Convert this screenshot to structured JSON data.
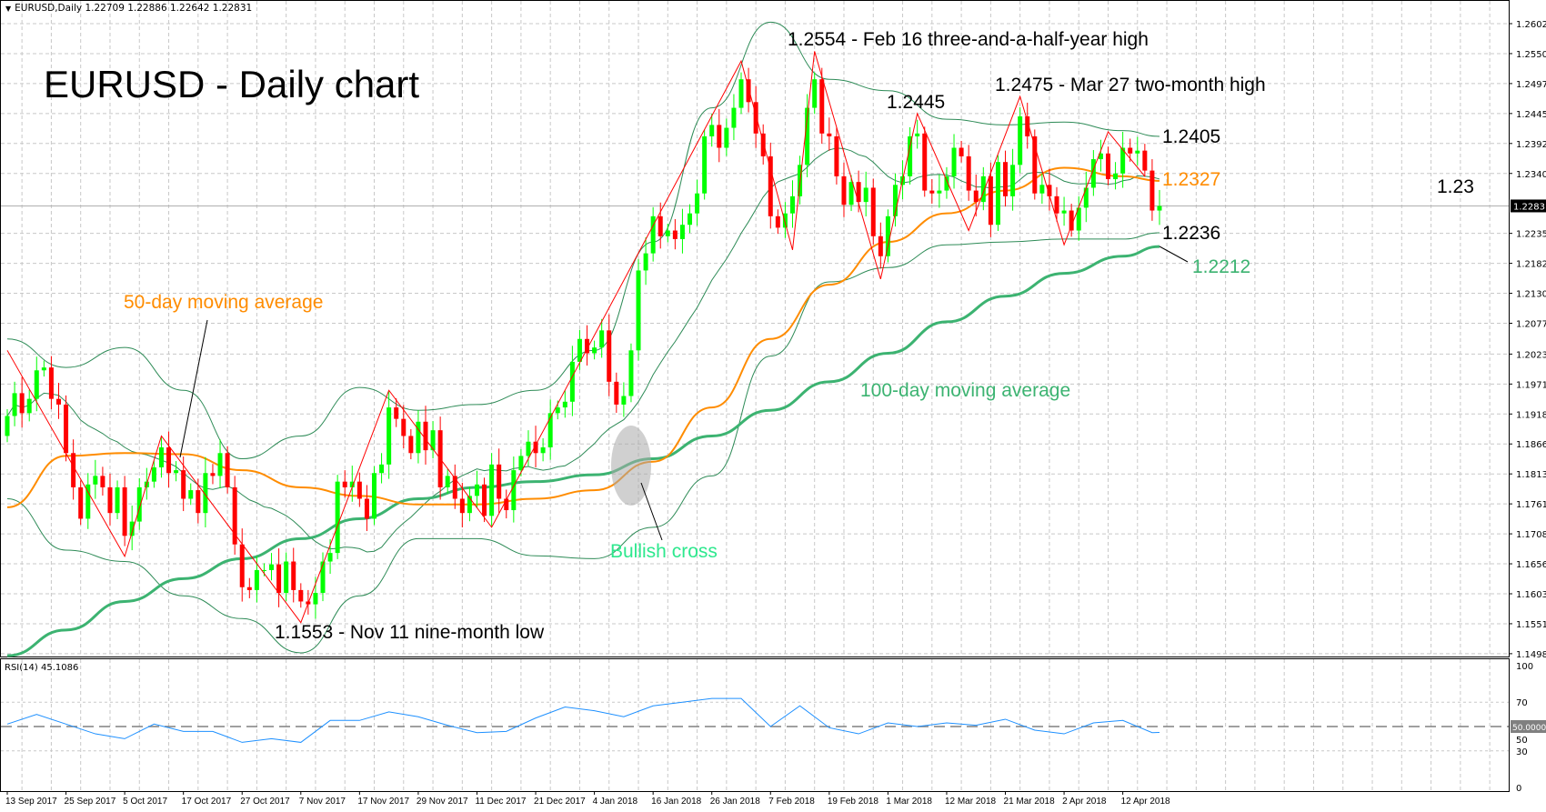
{
  "header": {
    "symbol": "EURUSD,Daily",
    "open": "1.22709",
    "high": "1.22886",
    "low": "1.22642",
    "close": "1.22831",
    "menu_icon": "triangle-down-icon"
  },
  "annotations": {
    "title": "EURUSD - Daily chart",
    "feb_high": "1.2554 - Feb 16 three-and-a-half-year high",
    "mar_high": "1.2475 - Mar 27 two-month high",
    "level_12445": "1.2445",
    "level_12405": "1.2405",
    "level_12327": "1.2327",
    "level_123": "1.23",
    "level_12236": "1.2236",
    "level_12212": "1.2212",
    "ma50_label": "50-day moving average",
    "ma100_label": "100-day moving average",
    "bullish_cross": "Bullish cross",
    "nov_low": "1.1553 - Nov 11 nine-month low"
  },
  "colors": {
    "bull": "#00ff00",
    "bear": "#ff0000",
    "ma50": "#ff8c00",
    "ma100": "#3cb371",
    "bands": "#2e8b57",
    "zigzag": "#ff0000",
    "rsi": "#1e90ff",
    "cross_text": "#2ee88e"
  },
  "chart_data": [
    {
      "type": "candlestick",
      "title": "",
      "price_axis": {
        "ticks": [
          "1.26025",
          "1.25500",
          "1.24975",
          "1.24450",
          "1.23925",
          "1.23400",
          "1.22350",
          "1.21825",
          "1.21300",
          "1.20775",
          "1.20235",
          "1.19710",
          "1.19185",
          "1.18660",
          "1.18135",
          "1.17610",
          "1.17085",
          "1.16560",
          "1.16035",
          "1.15510",
          "1.14985"
        ],
        "ylim": [
          1.14985,
          1.26025
        ],
        "current_price": "1.22831"
      },
      "date_axis": {
        "ticks": [
          "13 Sep 2017",
          "25 Sep 2017",
          "5 Oct 2017",
          "17 Oct 2017",
          "27 Oct 2017",
          "7 Nov 2017",
          "17 Nov 2017",
          "29 Nov 2017",
          "11 Dec 2017",
          "21 Dec 2017",
          "4 Jan 2018",
          "16 Jan 2018",
          "26 Jan 2018",
          "7 Feb 2018",
          "19 Feb 2018",
          "1 Mar 2018",
          "12 Mar 2018",
          "21 Mar 2018",
          "2 Apr 2018",
          "12 Apr 2018"
        ]
      },
      "grid": true,
      "closes": [
        1.1915,
        1.1955,
        1.192,
        1.1945,
        1.1995,
        1.2,
        1.1945,
        1.1935,
        1.185,
        1.179,
        1.1735,
        1.1795,
        1.181,
        1.179,
        1.1745,
        1.179,
        1.1705,
        1.173,
        1.179,
        1.18,
        1.1825,
        1.186,
        1.1815,
        1.182,
        1.177,
        1.1785,
        1.1745,
        1.1815,
        1.181,
        1.185,
        1.179,
        1.169,
        1.1615,
        1.161,
        1.1645,
        1.1645,
        1.1655,
        1.1605,
        1.166,
        1.161,
        1.159,
        1.1585,
        1.1605,
        1.166,
        1.1675,
        1.18,
        1.179,
        1.18,
        1.177,
        1.1735,
        1.1815,
        1.183,
        1.193,
        1.191,
        1.188,
        1.185,
        1.1905,
        1.1855,
        1.189,
        1.179,
        1.181,
        1.177,
        1.1745,
        1.1775,
        1.1795,
        1.174,
        1.183,
        1.177,
        1.175,
        1.182,
        1.1845,
        1.187,
        1.185,
        1.186,
        1.192,
        1.193,
        1.194,
        1.201,
        1.205,
        1.2025,
        1.2035,
        1.2065,
        1.1975,
        1.1935,
        1.195,
        1.203,
        1.217,
        1.22,
        1.2265,
        1.223,
        1.224,
        1.2225,
        1.225,
        1.227,
        1.2305,
        1.2405,
        1.2425,
        1.2385,
        1.242,
        1.2455,
        1.2505,
        1.2465,
        1.241,
        1.237,
        1.2265,
        1.2245,
        1.227,
        1.23,
        1.2355,
        1.2455,
        1.2505,
        1.241,
        1.2405,
        1.2335,
        1.2285,
        1.2325,
        1.229,
        1.2315,
        1.223,
        1.2195,
        1.2265,
        1.232,
        1.2335,
        1.2405,
        1.241,
        1.231,
        1.2305,
        1.231,
        1.2335,
        1.2385,
        1.237,
        1.231,
        1.229,
        1.2335,
        1.225,
        1.236,
        1.23,
        1.2355,
        1.244,
        1.2405,
        1.2305,
        1.232,
        1.23,
        1.227,
        1.2275,
        1.224,
        1.228,
        1.2315,
        1.2365,
        1.2375,
        1.233,
        1.234,
        1.2385,
        1.2375,
        1.238,
        1.2345,
        1.2275,
        1.2283
      ],
      "ma50": [
        1.1755,
        1.1845,
        1.185,
        1.1848,
        1.182,
        1.179,
        1.1775,
        1.176,
        1.176,
        1.177,
        1.1785,
        1.1835,
        1.193,
        1.205,
        1.2145,
        1.222,
        1.227,
        1.231,
        1.235,
        1.2335,
        1.2327
      ],
      "ma100": [
        1.1495,
        1.154,
        1.159,
        1.163,
        1.1665,
        1.17,
        1.1735,
        1.177,
        1.179,
        1.18,
        1.1812,
        1.184,
        1.188,
        1.1925,
        1.1975,
        1.2025,
        1.208,
        1.2125,
        1.2165,
        1.2195,
        1.2212
      ],
      "bollinger_upper": [
        1.205,
        1.2,
        1.2035,
        1.196,
        1.184,
        1.188,
        1.1965,
        1.1925,
        1.1935,
        1.196,
        1.203,
        1.222,
        1.2455,
        1.2605,
        1.2505,
        1.2485,
        1.2435,
        1.2425,
        1.243,
        1.2415,
        1.2405
      ],
      "bollinger_lower": [
        1.177,
        1.168,
        1.166,
        1.16,
        1.156,
        1.15,
        1.16,
        1.17,
        1.17,
        1.167,
        1.1665,
        1.172,
        1.181,
        1.202,
        1.215,
        1.2175,
        1.2215,
        1.222,
        1.2225,
        1.2225,
        1.2236
      ],
      "zigzag": [
        [
          0,
          1.203
        ],
        [
          16,
          1.1669
        ],
        [
          21,
          1.188
        ],
        [
          40,
          1.1553
        ],
        [
          52,
          1.196
        ],
        [
          66,
          1.172
        ],
        [
          100,
          1.2537
        ],
        [
          107,
          1.2206
        ],
        [
          110,
          1.2554
        ],
        [
          119,
          1.2155
        ],
        [
          124,
          1.2445
        ],
        [
          131,
          1.224
        ],
        [
          138,
          1.2475
        ],
        [
          144,
          1.2215
        ],
        [
          150,
          1.2413
        ],
        [
          155,
          1.2335
        ]
      ]
    },
    {
      "type": "line",
      "title": "RSI(14)",
      "current_value": "45.1086",
      "ylim": [
        0,
        100
      ],
      "ticks": [
        "100",
        "70",
        "50",
        "30",
        "0"
      ],
      "reference_level": "50.0000",
      "values": [
        52,
        60,
        52,
        44,
        40,
        52,
        46,
        46,
        37,
        40,
        37,
        55,
        55,
        62,
        58,
        51,
        45,
        46,
        57,
        66,
        63,
        58,
        67,
        70,
        73,
        73,
        50,
        67,
        49,
        44,
        53,
        50,
        53,
        51,
        56,
        47,
        44,
        53,
        55,
        45,
        45.1086
      ]
    }
  ]
}
